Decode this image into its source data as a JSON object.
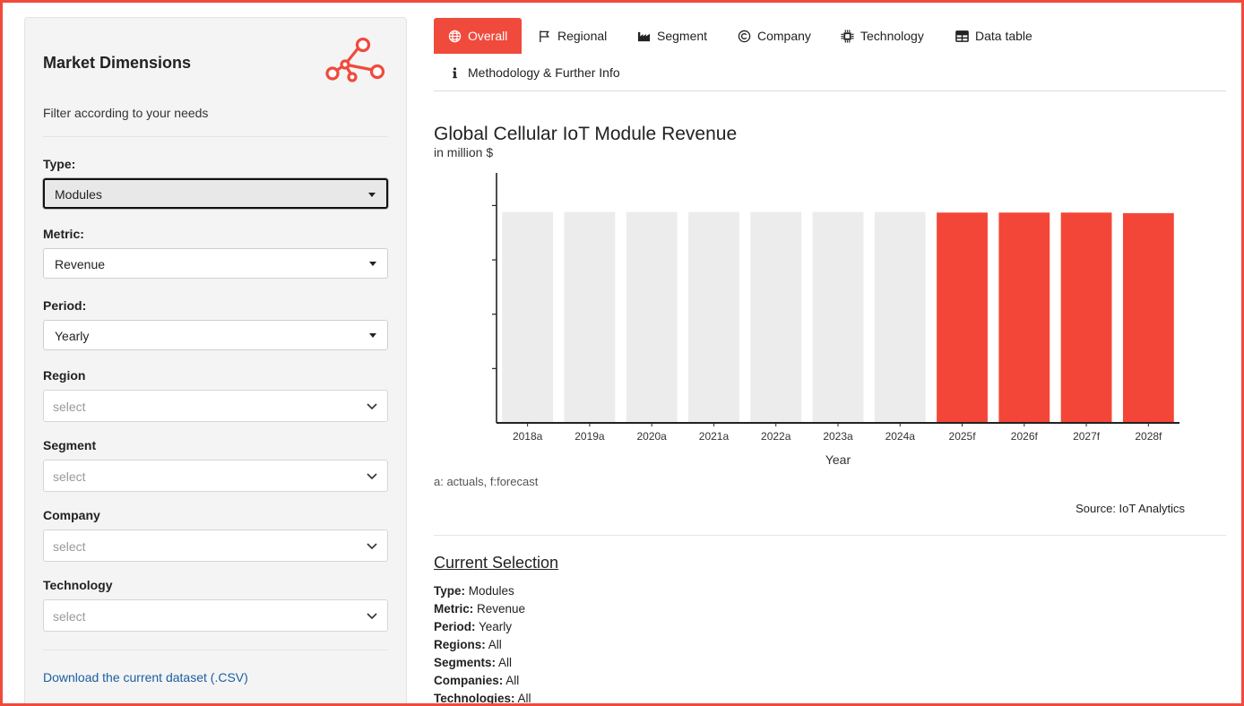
{
  "sidebar": {
    "title": "Market Dimensions",
    "subtitle": "Filter according to your needs",
    "fields": [
      {
        "label": "Type:",
        "value": "Modules"
      },
      {
        "label": "Metric:",
        "value": "Revenue"
      },
      {
        "label": "Period:",
        "value": "Yearly"
      }
    ],
    "multi": [
      {
        "label": "Region",
        "placeholder": "select"
      },
      {
        "label": "Segment",
        "placeholder": "select"
      },
      {
        "label": "Company",
        "placeholder": "select"
      },
      {
        "label": "Technology",
        "placeholder": "select"
      }
    ],
    "download_label": "Download the current dataset (.CSV)"
  },
  "tabs": [
    {
      "label": "Overall",
      "icon": "globe-icon",
      "active": true
    },
    {
      "label": "Regional",
      "icon": "flag-icon",
      "active": false
    },
    {
      "label": "Segment",
      "icon": "industry-icon",
      "active": false
    },
    {
      "label": "Company",
      "icon": "copyright-icon",
      "active": false
    },
    {
      "label": "Technology",
      "icon": "microchip-icon",
      "active": false
    },
    {
      "label": "Data table",
      "icon": "table-icon",
      "active": false
    },
    {
      "label": "Methodology & Further Info",
      "icon": "info-icon",
      "active": false
    }
  ],
  "chart_data": {
    "type": "bar",
    "title": "Global Cellular IoT Module Revenue",
    "subtitle": "in million $",
    "xlabel": "Year",
    "ylabel": "",
    "categories": [
      "2018a",
      "2019a",
      "2020a",
      "2021a",
      "2022a",
      "2023a",
      "2024a",
      "2025f",
      "2026f",
      "2027f",
      "2028f"
    ],
    "values": [
      3.88,
      3.88,
      3.88,
      3.88,
      3.88,
      3.88,
      3.88,
      3.87,
      3.87,
      3.87,
      3.86
    ],
    "kind": [
      "actual",
      "actual",
      "actual",
      "actual",
      "actual",
      "actual",
      "actual",
      "forecast",
      "forecast",
      "forecast",
      "forecast"
    ],
    "ylim": [
      0,
      4.6
    ],
    "yticks": [
      1,
      2,
      3,
      4
    ],
    "colors": {
      "actual": "#ececec",
      "forecast": "#f44638",
      "axis": "#222222"
    }
  },
  "note": "a: actuals, f:forecast",
  "source": "Source: IoT Analytics",
  "selection": {
    "title": "Current Selection",
    "rows": [
      {
        "key": "Type:",
        "value": "Modules"
      },
      {
        "key": "Metric:",
        "value": "Revenue"
      },
      {
        "key": "Period:",
        "value": "Yearly"
      },
      {
        "key": "Regions:",
        "value": "All"
      },
      {
        "key": "Segments:",
        "value": "All"
      },
      {
        "key": "Companies:",
        "value": "All"
      },
      {
        "key": "Technologies:",
        "value": "All"
      }
    ]
  },
  "colors": {
    "accent": "#f04a3c",
    "link": "#1a5fa0"
  }
}
